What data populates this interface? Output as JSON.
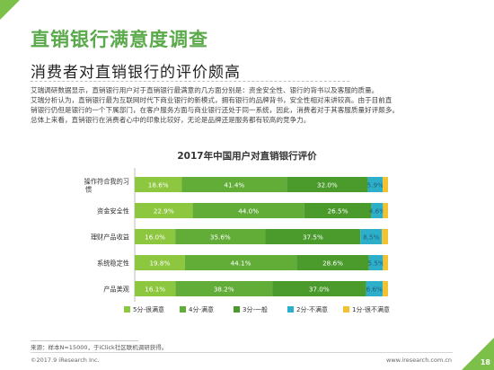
{
  "page": {
    "title": "直销银行满意度调查",
    "subtitle": "消费者对直销银行的评价颇高",
    "paragraphs": [
      "艾瑞调研数据显示，直销银行用户对于直销银行最满意的几方面分别是：资金安全性、银行的背书以及客服的质量。",
      "艾瑞分析认为，直销银行最为互联网时代下商业银行的新模式，拥有银行的品牌背书，安全性相对来讲较高。由于目前直",
      "销银行仍但是银行的一个下属部门，在客户服务方面与商业银行还处于同一系统，因此，消费者对于其客服质量好评颇多。",
      "总体上来看，直销银行在消费者心中的印象比较好，无论是品牌还是服务都有较高的竞争力。"
    ],
    "source": "来源：样本N=15000，于iClick社区联机调研获得。",
    "copyright": "©2017.9 iResearch Inc.",
    "url": "www.iresearch.com.cn",
    "page_number": "18",
    "accent_color": "#7cc04a"
  },
  "chart_data": {
    "type": "bar",
    "orientation": "horizontal",
    "stacked": true,
    "title": "2017年中国用户对直销银行评价",
    "categories": [
      "操作符合我的习惯",
      "资金安全性",
      "理财产品收益",
      "系统稳定性",
      "产品美观"
    ],
    "series": [
      {
        "name": "5分-很满意",
        "color": "#8dc63f",
        "values": [
          18.6,
          22.9,
          16.0,
          19.8,
          16.1
        ]
      },
      {
        "name": "4分-满意",
        "color": "#62ad38",
        "values": [
          41.4,
          44.0,
          35.6,
          44.1,
          38.2
        ]
      },
      {
        "name": "3分-一般",
        "color": "#4a9a2c",
        "values": [
          32.0,
          26.5,
          37.5,
          28.6,
          37.0
        ]
      },
      {
        "name": "2分-不满意",
        "color": "#2eafc9",
        "values": [
          5.9,
          4.6,
          8.5,
          5.5,
          6.6
        ]
      },
      {
        "name": "1分-很不满意",
        "color": "#f2c230",
        "values": [
          2.1,
          2.0,
          2.4,
          2.0,
          2.1
        ]
      }
    ],
    "xlim": [
      0,
      100
    ],
    "legend_position": "bottom",
    "grid": false
  }
}
